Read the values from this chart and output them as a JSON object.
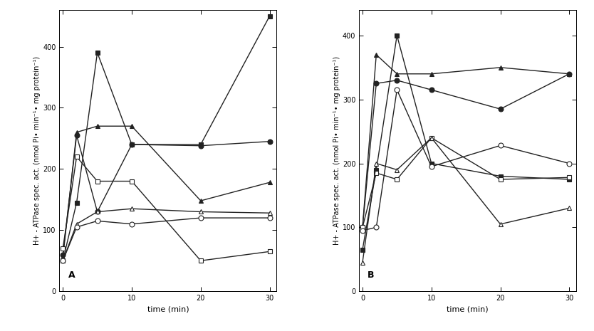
{
  "time": [
    0,
    2,
    5,
    10,
    20,
    30
  ],
  "panel_A": {
    "label": "A",
    "series": [
      {
        "marker": "s",
        "filled": true,
        "values": [
          50,
          145,
          390,
          240,
          240,
          450
        ]
      },
      {
        "marker": "o",
        "filled": true,
        "values": [
          60,
          255,
          130,
          240,
          238,
          245
        ]
      },
      {
        "marker": "^",
        "filled": true,
        "values": [
          55,
          260,
          270,
          270,
          148,
          178
        ]
      },
      {
        "marker": "s",
        "filled": false,
        "values": [
          70,
          220,
          180,
          180,
          50,
          65
        ]
      },
      {
        "marker": "^",
        "filled": false,
        "values": [
          50,
          110,
          130,
          135,
          130,
          128
        ]
      },
      {
        "marker": "o",
        "filled": false,
        "values": [
          50,
          105,
          115,
          110,
          120,
          120
        ]
      }
    ],
    "ylim": [
      0,
      460
    ],
    "yticks": [
      0,
      100,
      200,
      300,
      400
    ],
    "ylabel": "H+ - ATPase spec. act. (nmol Pi∙ min⁻¹∙ mg protein⁻¹)",
    "xlabel": "time (min)",
    "xticks": [
      0,
      10,
      20,
      30
    ],
    "xlim": [
      -0.5,
      31
    ]
  },
  "panel_B": {
    "label": "B",
    "series": [
      {
        "marker": "s",
        "filled": true,
        "values": [
          65,
          190,
          400,
          200,
          180,
          175
        ]
      },
      {
        "marker": "^",
        "filled": true,
        "values": [
          100,
          370,
          340,
          340,
          350,
          340
        ]
      },
      {
        "marker": "o",
        "filled": true,
        "values": [
          100,
          325,
          330,
          315,
          285,
          340
        ]
      },
      {
        "marker": "s",
        "filled": false,
        "values": [
          100,
          185,
          175,
          240,
          175,
          178
        ]
      },
      {
        "marker": "^",
        "filled": false,
        "values": [
          45,
          200,
          190,
          240,
          105,
          130
        ]
      },
      {
        "marker": "o",
        "filled": false,
        "values": [
          95,
          100,
          315,
          195,
          228,
          200
        ]
      }
    ],
    "ylim": [
      0,
      440
    ],
    "yticks": [
      0,
      100,
      200,
      300,
      400
    ],
    "ylabel": "H+ - ATPase spec. act. (nmol Pi∙ min⁻¹∙ mg protein⁻¹)",
    "xlabel": "time (min)",
    "xticks": [
      0,
      10,
      20,
      30
    ],
    "xlim": [
      -0.5,
      31
    ]
  },
  "line_color": "#222222",
  "marker_size": 5,
  "linewidth": 1.0,
  "font_size": 8,
  "fig_width": 8.34,
  "fig_height": 4.65,
  "dpi": 100
}
